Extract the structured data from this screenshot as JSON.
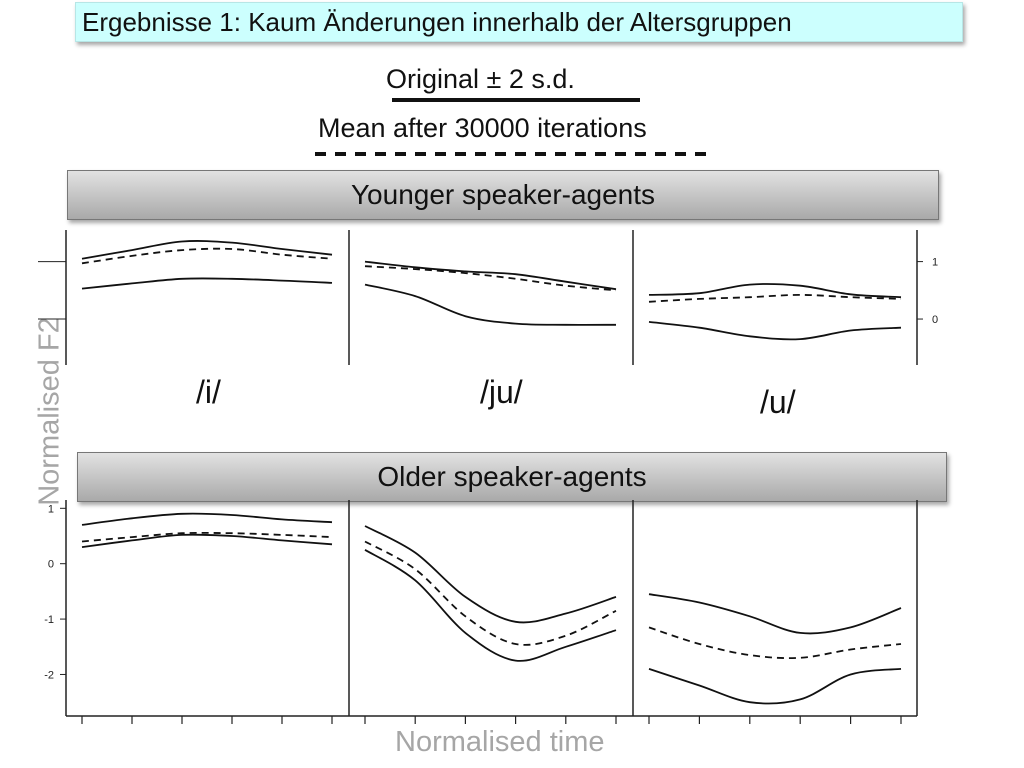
{
  "title": "Ergebnisse 1: Kaum Änderungen innerhalb der Altersgruppen",
  "legend": {
    "solid_label": "Original ± 2 s.d.",
    "dashed_label": "Mean after 30000 iterations"
  },
  "axes": {
    "ylabel": "Normalised F2",
    "xlabel": "Normalised time"
  },
  "chart_data": [
    {
      "type": "line",
      "title": "Younger speaker-agents",
      "panels": [
        "/i/",
        "/ju/",
        "/u/"
      ],
      "x": [
        0,
        0.2,
        0.4,
        0.6,
        0.8,
        1.0
      ],
      "yticks": [
        0,
        1
      ],
      "ylim": [
        -0.8,
        1.55
      ],
      "x_ticks_count": 11,
      "series_by_panel": [
        {
          "upper": [
            1.05,
            1.2,
            1.35,
            1.33,
            1.22,
            1.12
          ],
          "mean": [
            0.97,
            1.1,
            1.2,
            1.22,
            1.12,
            1.05
          ],
          "lower": [
            0.53,
            0.62,
            0.7,
            0.7,
            0.67,
            0.63
          ]
        },
        {
          "upper": [
            1.0,
            0.9,
            0.83,
            0.78,
            0.65,
            0.52
          ],
          "mean": [
            0.92,
            0.87,
            0.8,
            0.7,
            0.58,
            0.5
          ],
          "lower": [
            0.6,
            0.4,
            0.05,
            -0.08,
            -0.1,
            -0.1
          ]
        },
        {
          "upper": [
            0.42,
            0.45,
            0.6,
            0.58,
            0.43,
            0.38
          ],
          "mean": [
            0.3,
            0.35,
            0.38,
            0.42,
            0.38,
            0.35
          ],
          "lower": [
            -0.05,
            -0.15,
            -0.3,
            -0.35,
            -0.2,
            -0.15
          ]
        }
      ]
    },
    {
      "type": "line",
      "title": "Older speaker-agents",
      "panels": [
        "/i/",
        "/ju/",
        "/u/"
      ],
      "x": [
        0,
        0.2,
        0.4,
        0.6,
        0.8,
        1.0
      ],
      "yticks": [
        -2,
        -1,
        0,
        1
      ],
      "ylim": [
        -2.75,
        1.15
      ],
      "x_ticks_count": 11,
      "series_by_panel": [
        {
          "upper": [
            0.7,
            0.82,
            0.9,
            0.88,
            0.8,
            0.75
          ],
          "mean": [
            0.4,
            0.48,
            0.55,
            0.55,
            0.52,
            0.48
          ],
          "lower": [
            0.3,
            0.42,
            0.52,
            0.5,
            0.42,
            0.35
          ]
        },
        {
          "upper": [
            0.68,
            0.2,
            -0.6,
            -1.05,
            -0.9,
            -0.6
          ],
          "mean": [
            0.4,
            -0.1,
            -0.95,
            -1.45,
            -1.3,
            -0.85
          ],
          "lower": [
            0.25,
            -0.3,
            -1.25,
            -1.75,
            -1.5,
            -1.2
          ]
        },
        {
          "upper": [
            -0.55,
            -0.7,
            -0.95,
            -1.25,
            -1.15,
            -0.8
          ],
          "mean": [
            -1.15,
            -1.45,
            -1.65,
            -1.7,
            -1.55,
            -1.45
          ],
          "lower": [
            -1.9,
            -2.2,
            -2.5,
            -2.45,
            -2.0,
            -1.9
          ]
        }
      ]
    }
  ]
}
